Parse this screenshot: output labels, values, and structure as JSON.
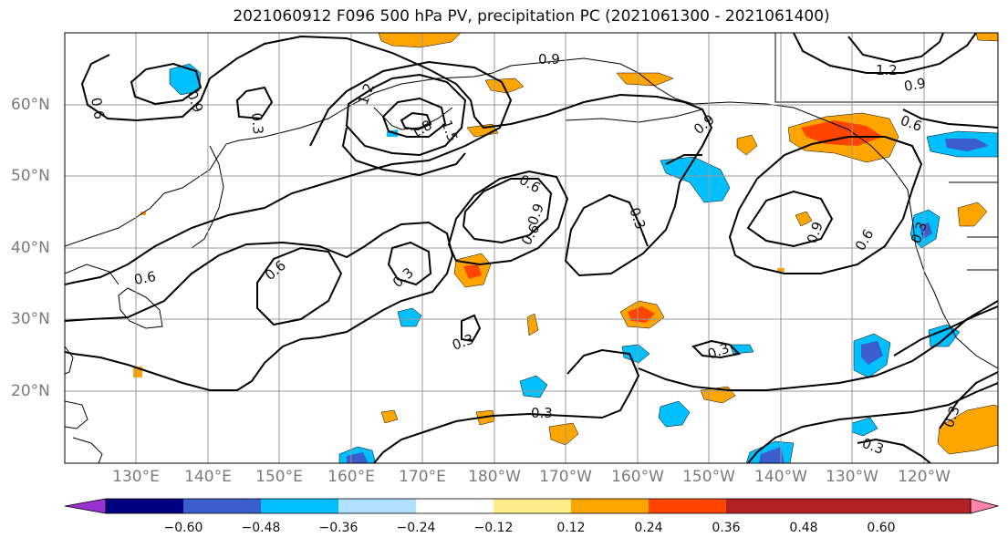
{
  "title": "2021060912 F096 500 hPa PV, precipitation PC (2021061300 - 2021061400)",
  "lat_labels": [
    "60°N",
    "50°N",
    "40°N",
    "30°N",
    "20°N"
  ],
  "lon_labels": [
    "130°E",
    "140°E",
    "150°E",
    "160°E",
    "170°E",
    "180°W",
    "170°W",
    "160°W",
    "150°W",
    "140°W",
    "130°W",
    "120°W"
  ],
  "colorbar": {
    "colors": [
      "#9b30d0",
      "#000080",
      "#3a5fcd",
      "#00bfff",
      "#b0e2ff",
      "#ffffff",
      "#ffec8b",
      "#ffa500",
      "#ff4500",
      "#b22222",
      "#ff82ab"
    ],
    "tick_labels": [
      "−0.60",
      "−0.48",
      "−0.36",
      "−0.24",
      "−0.12",
      "0.12",
      "0.24",
      "0.36",
      "0.48",
      "0.60"
    ]
  },
  "contour_labels": [
    "0.6",
    "0.9",
    "0.3",
    "1.2",
    "1.5",
    "1.8",
    "0.9",
    "0.9",
    "0.6",
    "0.6",
    "1.2",
    "0.9",
    "0.6",
    "0.9",
    "0.3",
    "0.3",
    "0.6",
    "0.9",
    "0.6",
    "0.3",
    "0.6",
    "0.3",
    "0.3",
    "0.3",
    "0.3",
    "0.3"
  ],
  "legend_colors": {
    "contour": "#000000",
    "coast": "#000000",
    "grid": "#999999"
  }
}
